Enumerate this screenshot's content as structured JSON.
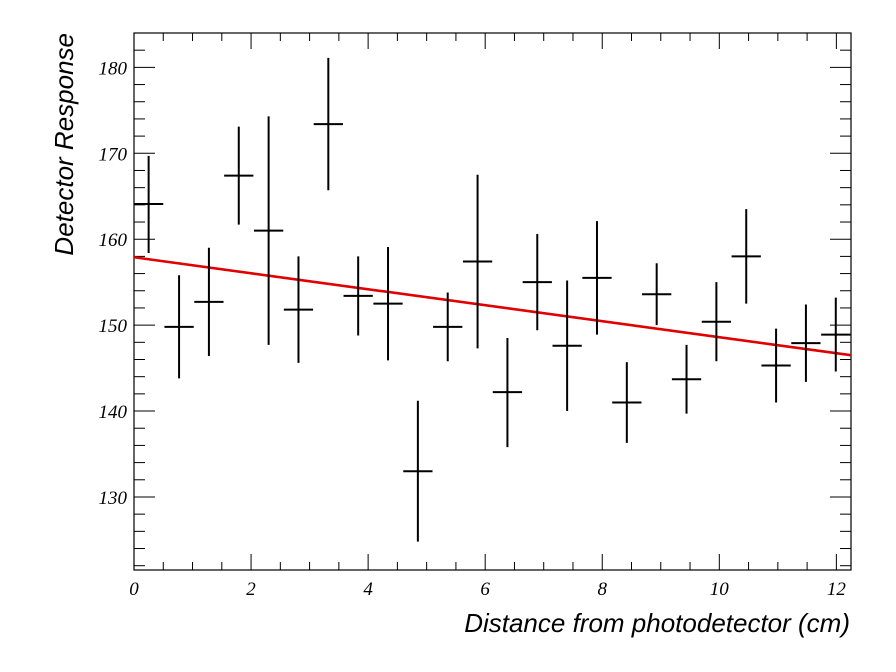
{
  "chart_data": {
    "type": "scatter",
    "title": "",
    "xlabel": "Distance from photodetector (cm)",
    "ylabel": "Detector Response",
    "xlim": [
      0,
      12.25
    ],
    "ylim": [
      121.5,
      184
    ],
    "x_ticks": [
      0,
      2,
      4,
      6,
      8,
      10,
      12
    ],
    "y_ticks": [
      130,
      140,
      150,
      160,
      170,
      180
    ],
    "grid": false,
    "colors": {
      "points": "#000000",
      "fit": "#e00000"
    },
    "series": [
      {
        "points": [
          {
            "x": 0.25,
            "xerr": 0.25,
            "y": 164.1,
            "yerr_low": 5.7,
            "yerr_high": 5.6
          },
          {
            "x": 0.77,
            "xerr": 0.25,
            "y": 149.8,
            "yerr_low": 6.0,
            "yerr_high": 6.0
          },
          {
            "x": 1.28,
            "xerr": 0.25,
            "y": 152.7,
            "yerr_low": 6.3,
            "yerr_high": 6.3
          },
          {
            "x": 1.79,
            "xerr": 0.25,
            "y": 167.4,
            "yerr_low": 5.7,
            "yerr_high": 5.7
          },
          {
            "x": 2.3,
            "xerr": 0.25,
            "y": 161.0,
            "yerr_low": 13.3,
            "yerr_high": 13.3
          },
          {
            "x": 2.81,
            "xerr": 0.25,
            "y": 151.8,
            "yerr_low": 6.2,
            "yerr_high": 6.2
          },
          {
            "x": 3.32,
            "xerr": 0.25,
            "y": 173.4,
            "yerr_low": 7.7,
            "yerr_high": 7.7
          },
          {
            "x": 3.83,
            "xerr": 0.25,
            "y": 153.4,
            "yerr_low": 4.6,
            "yerr_high": 4.6
          },
          {
            "x": 4.34,
            "xerr": 0.25,
            "y": 152.5,
            "yerr_low": 6.6,
            "yerr_high": 6.6
          },
          {
            "x": 4.85,
            "xerr": 0.25,
            "y": 133.0,
            "yerr_low": 8.2,
            "yerr_high": 8.2
          },
          {
            "x": 5.36,
            "xerr": 0.25,
            "y": 149.8,
            "yerr_low": 4.0,
            "yerr_high": 4.0
          },
          {
            "x": 5.87,
            "xerr": 0.25,
            "y": 157.4,
            "yerr_low": 10.1,
            "yerr_high": 10.1
          },
          {
            "x": 6.38,
            "xerr": 0.25,
            "y": 142.2,
            "yerr_low": 6.4,
            "yerr_high": 6.3
          },
          {
            "x": 6.89,
            "xerr": 0.25,
            "y": 155.0,
            "yerr_low": 5.6,
            "yerr_high": 5.6
          },
          {
            "x": 7.4,
            "xerr": 0.25,
            "y": 147.6,
            "yerr_low": 7.6,
            "yerr_high": 7.6
          },
          {
            "x": 7.91,
            "xerr": 0.25,
            "y": 155.5,
            "yerr_low": 6.6,
            "yerr_high": 6.6
          },
          {
            "x": 8.42,
            "xerr": 0.25,
            "y": 141.0,
            "yerr_low": 4.7,
            "yerr_high": 4.7
          },
          {
            "x": 8.93,
            "xerr": 0.25,
            "y": 153.6,
            "yerr_low": 3.6,
            "yerr_high": 3.6
          },
          {
            "x": 9.44,
            "xerr": 0.25,
            "y": 143.7,
            "yerr_low": 4.0,
            "yerr_high": 4.0
          },
          {
            "x": 9.95,
            "xerr": 0.25,
            "y": 150.4,
            "yerr_low": 4.6,
            "yerr_high": 4.6
          },
          {
            "x": 10.46,
            "xerr": 0.25,
            "y": 158.0,
            "yerr_low": 5.5,
            "yerr_high": 5.5
          },
          {
            "x": 10.97,
            "xerr": 0.25,
            "y": 145.3,
            "yerr_low": 4.3,
            "yerr_high": 4.3
          },
          {
            "x": 11.48,
            "xerr": 0.25,
            "y": 147.9,
            "yerr_low": 4.5,
            "yerr_high": 4.5
          },
          {
            "x": 11.99,
            "xerr": 0.25,
            "y": 148.9,
            "yerr_low": 4.3,
            "yerr_high": 4.3
          }
        ]
      }
    ],
    "fit": {
      "type": "line",
      "x": [
        0,
        12.25
      ],
      "y": [
        157.9,
        146.5
      ]
    }
  }
}
